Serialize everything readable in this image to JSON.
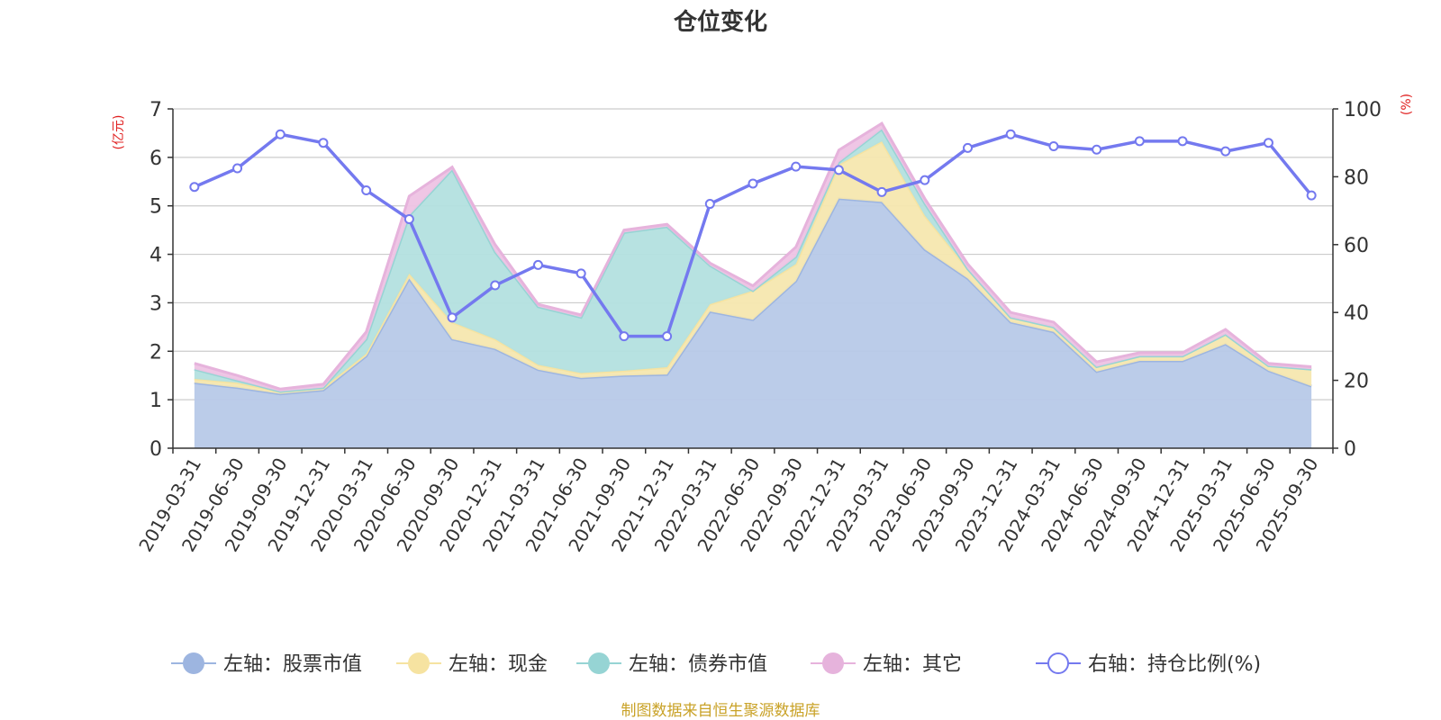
{
  "chart_data": {
    "type": "area",
    "title": "仓位变化",
    "left_axis_unit": "(亿元)",
    "right_axis_unit": "(%)",
    "ylim_left": [
      0,
      7
    ],
    "ylim_right": [
      0,
      100
    ],
    "left_ticks": [
      0,
      1,
      2,
      3,
      4,
      5,
      6,
      7
    ],
    "right_ticks": [
      0,
      20,
      40,
      60,
      80,
      100
    ],
    "grid": true,
    "legend_position": "bottom",
    "categories": [
      "2019-03-31",
      "2019-06-30",
      "2019-09-30",
      "2019-12-31",
      "2020-03-31",
      "2020-06-30",
      "2020-09-30",
      "2020-12-31",
      "2021-03-31",
      "2021-06-30",
      "2021-09-30",
      "2021-12-31",
      "2022-03-31",
      "2022-06-30",
      "2022-09-30",
      "2022-12-31",
      "2023-03-31",
      "2023-06-30",
      "2023-09-30",
      "2023-12-31",
      "2024-03-31",
      "2024-06-30",
      "2024-09-30",
      "2024-12-31",
      "2025-03-31",
      "2025-06-30",
      "2025-09-30"
    ],
    "series": [
      {
        "name": "左轴：股票市值",
        "axis": "left",
        "stacked": true,
        "color": "#9db5e0",
        "fill": "#b7c9e8",
        "values": [
          1.35,
          1.25,
          1.12,
          1.2,
          1.9,
          3.5,
          2.25,
          2.05,
          1.62,
          1.45,
          1.5,
          1.52,
          2.82,
          2.65,
          3.45,
          5.15,
          5.08,
          4.1,
          3.5,
          2.6,
          2.4,
          1.58,
          1.8,
          1.8,
          2.15,
          1.6,
          1.28
        ]
      },
      {
        "name": "左轴：现金",
        "axis": "left",
        "stacked": true,
        "color": "#f6e3a1",
        "fill": "#f6e7af",
        "values": [
          0.08,
          0.1,
          0.05,
          0.05,
          0.05,
          0.1,
          0.35,
          0.2,
          0.1,
          0.1,
          0.1,
          0.15,
          0.15,
          0.6,
          0.35,
          0.7,
          1.25,
          0.7,
          0.2,
          0.1,
          0.1,
          0.1,
          0.1,
          0.1,
          0.2,
          0.1,
          0.35
        ]
      },
      {
        "name": "左轴：债券市值",
        "axis": "left",
        "stacked": true,
        "color": "#96d4d4",
        "fill": "#b3e0df",
        "values": [
          0.2,
          0.05,
          0.0,
          0.0,
          0.3,
          1.2,
          3.15,
          1.8,
          1.2,
          1.15,
          2.85,
          2.9,
          0.8,
          0.0,
          0.15,
          0.05,
          0.25,
          0.25,
          0.0,
          0.0,
          0.0,
          0.0,
          0.0,
          0.0,
          0.0,
          0.0,
          0.0
        ]
      },
      {
        "name": "左轴：其它",
        "axis": "left",
        "stacked": true,
        "color": "#e6b3dc",
        "fill": "#eec3e4",
        "values": [
          0.12,
          0.1,
          0.05,
          0.07,
          0.15,
          0.4,
          0.05,
          0.15,
          0.05,
          0.05,
          0.05,
          0.05,
          0.05,
          0.1,
          0.2,
          0.25,
          0.12,
          0.1,
          0.1,
          0.1,
          0.1,
          0.1,
          0.07,
          0.07,
          0.1,
          0.05,
          0.05
        ]
      },
      {
        "name": "右轴：持仓比例(%)",
        "axis": "right",
        "type": "line",
        "color": "#7479ef",
        "values": [
          77,
          82.5,
          92.5,
          90,
          76,
          67.5,
          38.5,
          48,
          54,
          51.5,
          33,
          33,
          72,
          78,
          83,
          82,
          75.5,
          79,
          88.5,
          92.5,
          89,
          88,
          90.5,
          90.5,
          87.5,
          90,
          74.5
        ]
      }
    ]
  },
  "footer": {
    "source": "制图数据来自恒生聚源数据库"
  }
}
